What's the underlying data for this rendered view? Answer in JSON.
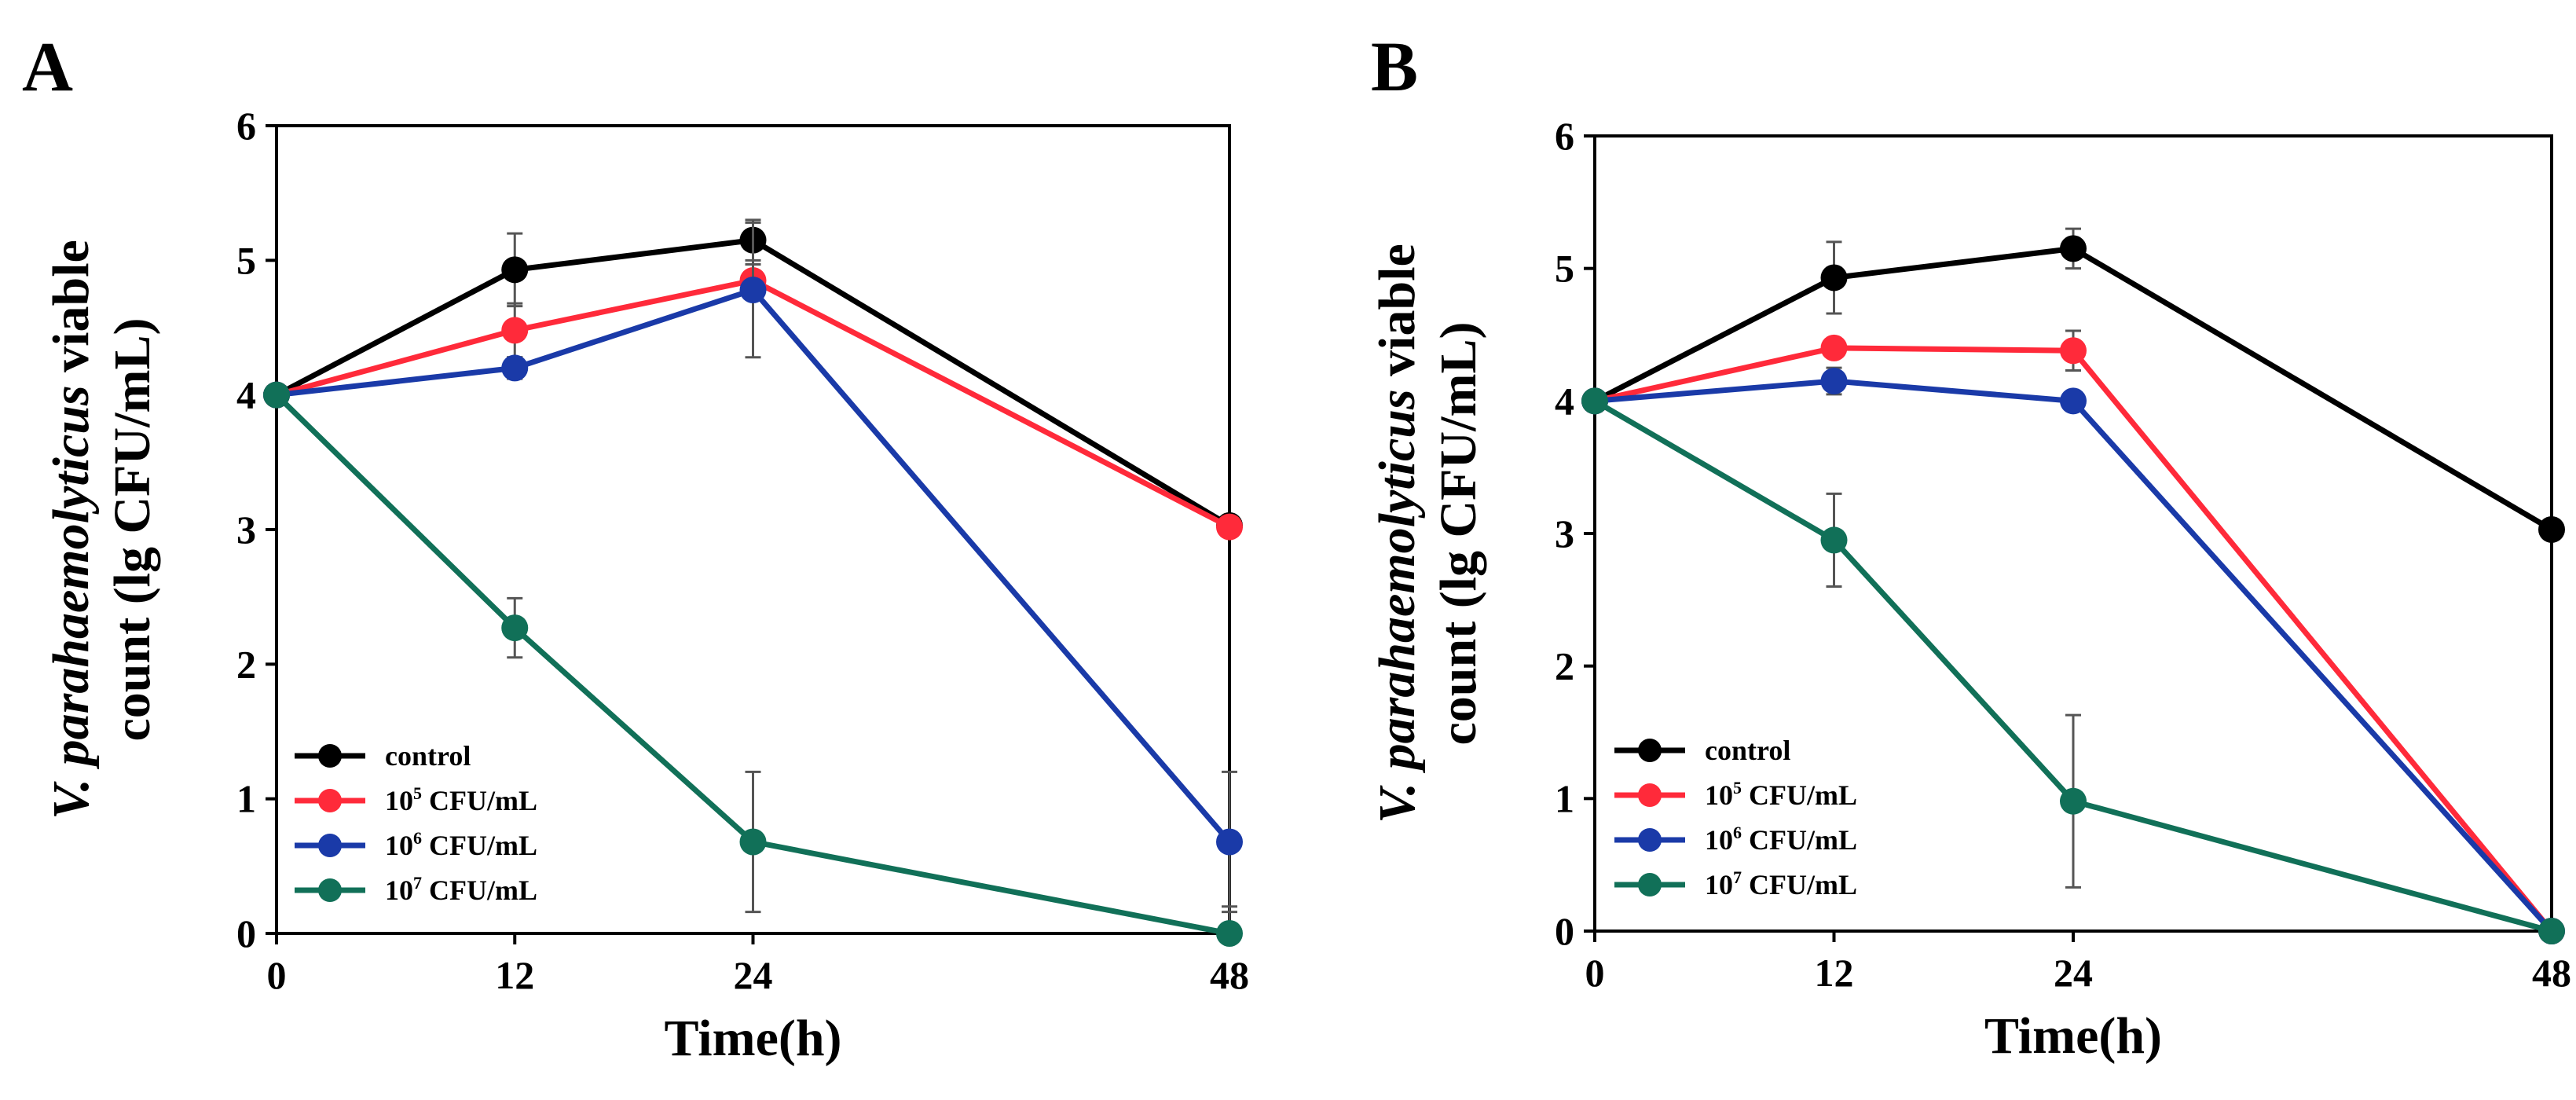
{
  "figure": {
    "panels": [
      "A",
      "B"
    ]
  },
  "series_colors": {
    "control": "#000000",
    "1e5": "#ff2a3a",
    "1e6": "#1a3aa8",
    "1e7": "#117058"
  },
  "legend_labels": [
    {
      "base": "control",
      "sup": "",
      "unit": ""
    },
    {
      "base": "10",
      "sup": "5",
      "unit": " CFU/mL"
    },
    {
      "base": "10",
      "sup": "6",
      "unit": " CFU/mL"
    },
    {
      "base": "10",
      "sup": "7",
      "unit": " CFU/mL"
    }
  ],
  "chart_data": [
    {
      "type": "line",
      "panel_label": "A",
      "title": "",
      "xlabel": "Time(h)",
      "ylabel_italic": "V. parahaemolyticus",
      "ylabel_rest": " viable",
      "ylabel_line2": "count (lg CFU/mL)",
      "x": [
        0,
        12,
        24,
        48
      ],
      "x_ticks": [
        "0",
        "12",
        "24",
        "48"
      ],
      "xlim": [
        0,
        48
      ],
      "y_ticks": [
        "0",
        "1",
        "2",
        "3",
        "4",
        "5",
        "6"
      ],
      "ylim": [
        0,
        6
      ],
      "legend_position": "bottom-left",
      "series": [
        {
          "name": "control",
          "values": [
            4.0,
            4.93,
            5.15,
            3.03
          ],
          "errors": [
            0,
            0.27,
            0.15,
            0
          ]
        },
        {
          "name": "10^5 CFU/mL",
          "values": [
            4.0,
            4.48,
            4.85,
            3.02
          ],
          "errors": [
            0,
            0.2,
            0.12,
            0
          ]
        },
        {
          "name": "10^6 CFU/mL",
          "values": [
            4.0,
            4.2,
            4.78,
            0.68
          ],
          "errors": [
            0,
            0.08,
            0.5,
            0.52
          ]
        },
        {
          "name": "10^7 CFU/mL",
          "values": [
            4.0,
            2.27,
            0.68,
            0.0
          ],
          "errors": [
            0,
            0.22,
            0.52,
            0.2
          ]
        }
      ]
    },
    {
      "type": "line",
      "panel_label": "B",
      "title": "",
      "xlabel": "Time(h)",
      "ylabel_italic": "V. parahaemolyticus",
      "ylabel_rest": " viable",
      "ylabel_line2": "count (lg CFU/mL)",
      "x": [
        0,
        12,
        24,
        48
      ],
      "x_ticks": [
        "0",
        "12",
        "24",
        "48"
      ],
      "xlim": [
        0,
        48
      ],
      "y_ticks": [
        "0",
        "1",
        "2",
        "3",
        "4",
        "5",
        "6"
      ],
      "ylim": [
        0,
        6
      ],
      "legend_position": "bottom-left",
      "series": [
        {
          "name": "control",
          "values": [
            4.0,
            4.93,
            5.15,
            3.03
          ],
          "errors": [
            0,
            0.27,
            0.15,
            0
          ]
        },
        {
          "name": "10^5 CFU/mL",
          "values": [
            4.0,
            4.4,
            4.38,
            0.0
          ],
          "errors": [
            0,
            0.05,
            0.15,
            0
          ]
        },
        {
          "name": "10^6 CFU/mL",
          "values": [
            4.0,
            4.15,
            4.0,
            0.0
          ],
          "errors": [
            0,
            0.1,
            0.05,
            0
          ]
        },
        {
          "name": "10^7 CFU/mL",
          "values": [
            4.0,
            2.95,
            0.98,
            0.0
          ],
          "errors": [
            0,
            0.35,
            0.65,
            0
          ]
        }
      ]
    }
  ]
}
